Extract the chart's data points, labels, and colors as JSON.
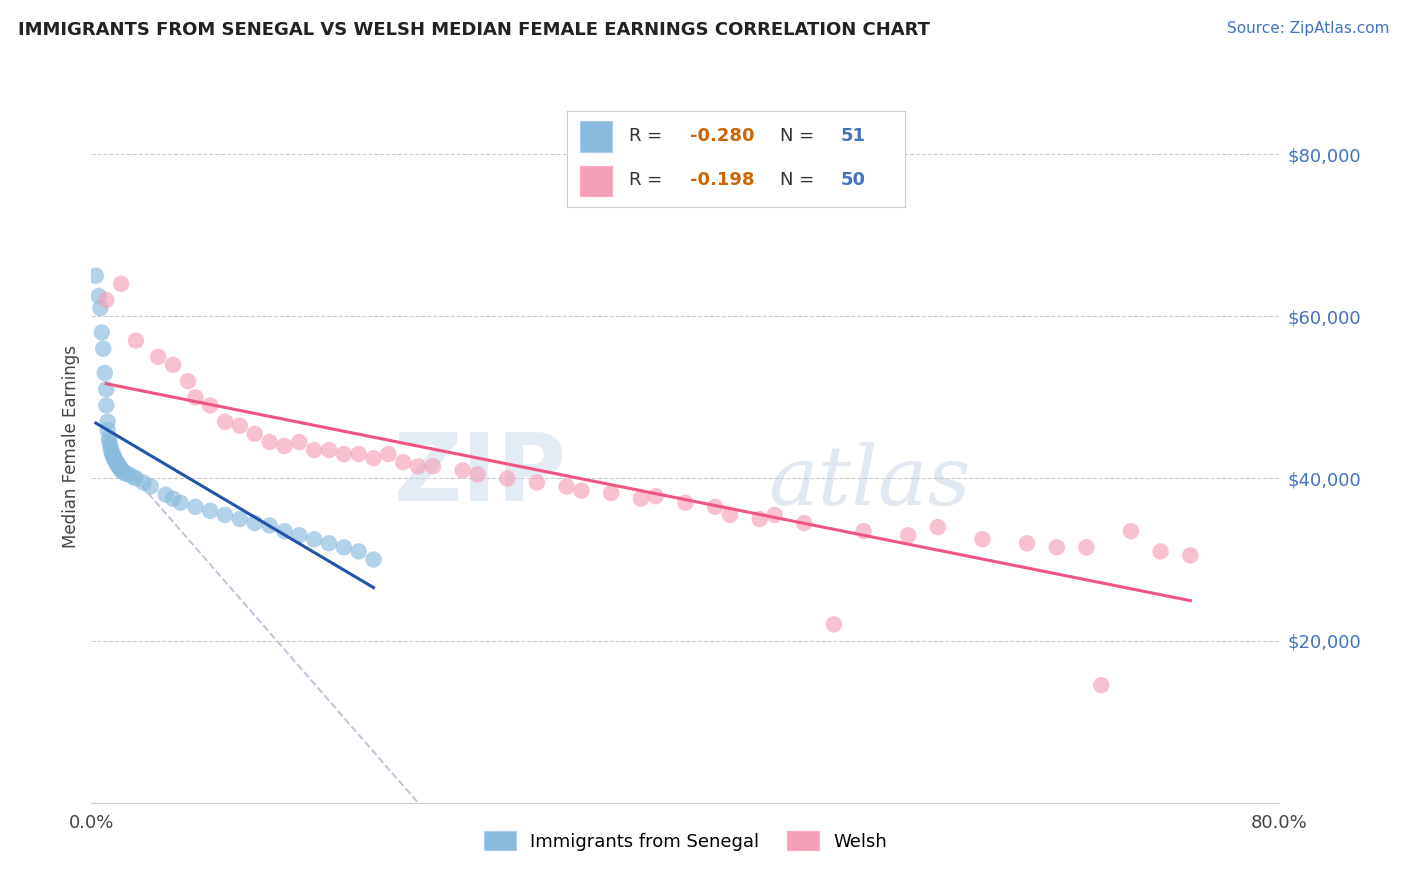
{
  "title": "IMMIGRANTS FROM SENEGAL VS WELSH MEDIAN FEMALE EARNINGS CORRELATION CHART",
  "source": "Source: ZipAtlas.com",
  "ylabel": "Median Female Earnings",
  "legend_1_label": "Immigrants from Senegal",
  "legend_2_label": "Welsh",
  "legend_1_R": "-0.280",
  "legend_1_N": "51",
  "legend_2_R": "-0.198",
  "legend_2_N": "50",
  "blue_color": "#88bbdd",
  "pink_color": "#f4a0b8",
  "blue_line_color": "#2255aa",
  "pink_line_color": "#ee5580",
  "yticks": [
    20000,
    40000,
    60000,
    80000
  ],
  "ytick_labels": [
    "$20,000",
    "$40,000",
    "$60,000",
    "$80,000"
  ],
  "xlim": [
    0,
    80
  ],
  "ylim": [
    0,
    88000
  ],
  "bg": "#ffffff",
  "grid_color": "#cccccc",
  "blue_x": [
    0.3,
    0.5,
    0.6,
    0.7,
    0.8,
    0.9,
    1.0,
    1.0,
    1.1,
    1.1,
    1.2,
    1.2,
    1.3,
    1.3,
    1.4,
    1.4,
    1.5,
    1.5,
    1.6,
    1.6,
    1.7,
    1.7,
    1.8,
    1.8,
    1.9,
    2.0,
    2.0,
    2.1,
    2.2,
    2.3,
    2.5,
    2.8,
    3.0,
    3.5,
    4.0,
    5.0,
    5.5,
    6.0,
    7.0,
    8.0,
    9.0,
    10.0,
    11.0,
    12.0,
    13.0,
    14.0,
    15.0,
    16.0,
    17.0,
    18.0,
    19.0
  ],
  "blue_y": [
    65000,
    62500,
    61000,
    58000,
    56000,
    53000,
    51000,
    49000,
    47000,
    46000,
    45000,
    44500,
    44000,
    43500,
    43200,
    43000,
    42800,
    42500,
    42300,
    42200,
    42000,
    41800,
    41700,
    41500,
    41400,
    41200,
    41000,
    40900,
    40800,
    40600,
    40500,
    40200,
    40000,
    39500,
    39000,
    38000,
    37500,
    37000,
    36500,
    36000,
    35500,
    35000,
    34500,
    34200,
    33500,
    33000,
    32500,
    32000,
    31500,
    31000,
    30000
  ],
  "pink_x": [
    1.0,
    2.0,
    3.0,
    4.5,
    5.5,
    6.5,
    7.0,
    8.0,
    9.0,
    10.0,
    11.0,
    12.0,
    13.0,
    14.0,
    15.0,
    16.0,
    17.0,
    18.0,
    19.0,
    20.0,
    21.0,
    22.0,
    23.0,
    25.0,
    26.0,
    28.0,
    30.0,
    32.0,
    33.0,
    35.0,
    37.0,
    38.0,
    40.0,
    42.0,
    43.0,
    45.0,
    46.0,
    48.0,
    50.0,
    52.0,
    55.0,
    57.0,
    60.0,
    63.0,
    65.0,
    67.0,
    68.0,
    70.0,
    72.0,
    74.0
  ],
  "pink_y": [
    62000,
    64000,
    57000,
    55000,
    54000,
    52000,
    50000,
    49000,
    47000,
    46500,
    45500,
    44500,
    44000,
    44500,
    43500,
    43500,
    43000,
    43000,
    42500,
    43000,
    42000,
    41500,
    41500,
    41000,
    40500,
    40000,
    39500,
    39000,
    38500,
    38200,
    37500,
    37800,
    37000,
    36500,
    35500,
    35000,
    35500,
    34500,
    22000,
    33500,
    33000,
    34000,
    32500,
    32000,
    31500,
    31500,
    14500,
    33500,
    31000,
    30500
  ]
}
